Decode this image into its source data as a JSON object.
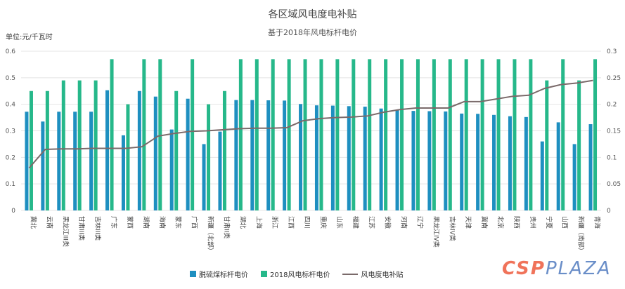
{
  "chart_data": {
    "type": "bar",
    "title": "各区域风电度电补贴",
    "subtitle": "基于2018年风电标杆电价",
    "ylabel": "单位:元/千瓦时",
    "ylim": [
      0,
      0.6
    ],
    "y2lim": [
      0,
      0.3
    ],
    "yticks": [
      "0",
      "0.1",
      "0.2",
      "0.3",
      "0.4",
      "0.5",
      "0.6"
    ],
    "y2ticks": [
      "0",
      "0.05",
      "0.1",
      "0.15",
      "0.2",
      "0.25",
      "0.3"
    ],
    "grid": true,
    "legend": "bottom",
    "categories": [
      "冀北",
      "云南",
      "黑龙江III类",
      "甘肃III类",
      "吉林III类",
      "广东",
      "蒙西",
      "湖南",
      "海南",
      "蒙东",
      "广西",
      "新疆（北部）",
      "甘肃II类",
      "湖北",
      "上海",
      "浙江",
      "江西",
      "四川",
      "重庆",
      "山东",
      "福建",
      "江苏",
      "安徽",
      "河南",
      "辽宁",
      "黑龙江IV类",
      "吉林IV类",
      "天津",
      "冀南",
      "北京",
      "陕西",
      "贵州",
      "宁夏",
      "山西",
      "新疆（南部）",
      "青海"
    ],
    "series": [
      {
        "name": "脱硫煤标杆电价",
        "type": "bar",
        "axis": "left",
        "color": "#1e8fc0",
        "values": [
          0.372,
          0.335,
          0.372,
          0.372,
          0.372,
          0.453,
          0.283,
          0.45,
          0.429,
          0.305,
          0.421,
          0.25,
          0.297,
          0.416,
          0.416,
          0.415,
          0.414,
          0.401,
          0.396,
          0.395,
          0.393,
          0.391,
          0.384,
          0.378,
          0.375,
          0.374,
          0.373,
          0.365,
          0.364,
          0.36,
          0.355,
          0.352,
          0.26,
          0.332,
          0.25,
          0.325
        ]
      },
      {
        "name": "2018风电标杆电价",
        "type": "bar",
        "axis": "left",
        "color": "#26b88a",
        "values": [
          0.45,
          0.45,
          0.49,
          0.49,
          0.49,
          0.57,
          0.4,
          0.57,
          0.57,
          0.45,
          0.57,
          0.4,
          0.45,
          0.57,
          0.57,
          0.57,
          0.57,
          0.57,
          0.57,
          0.57,
          0.57,
          0.57,
          0.57,
          0.57,
          0.57,
          0.57,
          0.57,
          0.57,
          0.57,
          0.57,
          0.57,
          0.57,
          0.49,
          0.57,
          0.49,
          0.57
        ]
      },
      {
        "name": "风电度电补贴",
        "type": "line",
        "axis": "right",
        "color": "#7a6a6a",
        "values": [
          0.08,
          0.115,
          0.116,
          0.116,
          0.117,
          0.117,
          0.117,
          0.12,
          0.14,
          0.145,
          0.149,
          0.15,
          0.152,
          0.154,
          0.155,
          0.155,
          0.156,
          0.169,
          0.173,
          0.175,
          0.176,
          0.178,
          0.185,
          0.19,
          0.193,
          0.193,
          0.193,
          0.205,
          0.205,
          0.21,
          0.215,
          0.217,
          0.23,
          0.237,
          0.24,
          0.245
        ]
      }
    ]
  },
  "watermark": "CSPPLAZA"
}
